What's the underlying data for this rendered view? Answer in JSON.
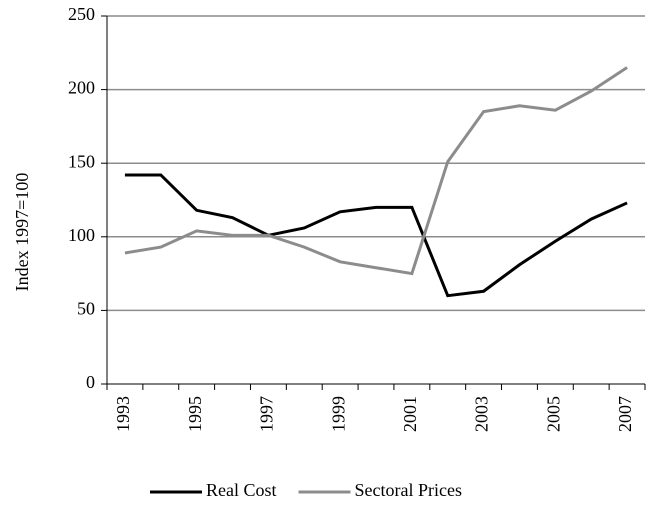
{
  "chart_data": {
    "type": "line",
    "categories": [
      "1993",
      null,
      "1995",
      null,
      "1997",
      null,
      "1999",
      null,
      "2001",
      null,
      "2003",
      null,
      "2005",
      null,
      "2007"
    ],
    "series": [
      {
        "name": "Real Cost",
        "color": "#000000",
        "values": [
          142,
          142,
          118,
          113,
          101,
          106,
          117,
          120,
          120,
          60,
          63,
          81,
          97,
          112,
          123
        ]
      },
      {
        "name": "Sectoral Prices",
        "color": "#8c8c8c",
        "values": [
          89,
          93,
          104,
          101,
          101,
          93,
          83,
          79,
          75,
          151,
          185,
          189,
          186,
          199,
          215
        ]
      }
    ],
    "ylabel": "Index 1997=100",
    "ylim": [
      0,
      250
    ],
    "yticks": [
      0,
      50,
      100,
      150,
      200,
      250
    ],
    "grid": true,
    "legend": "bottom"
  }
}
